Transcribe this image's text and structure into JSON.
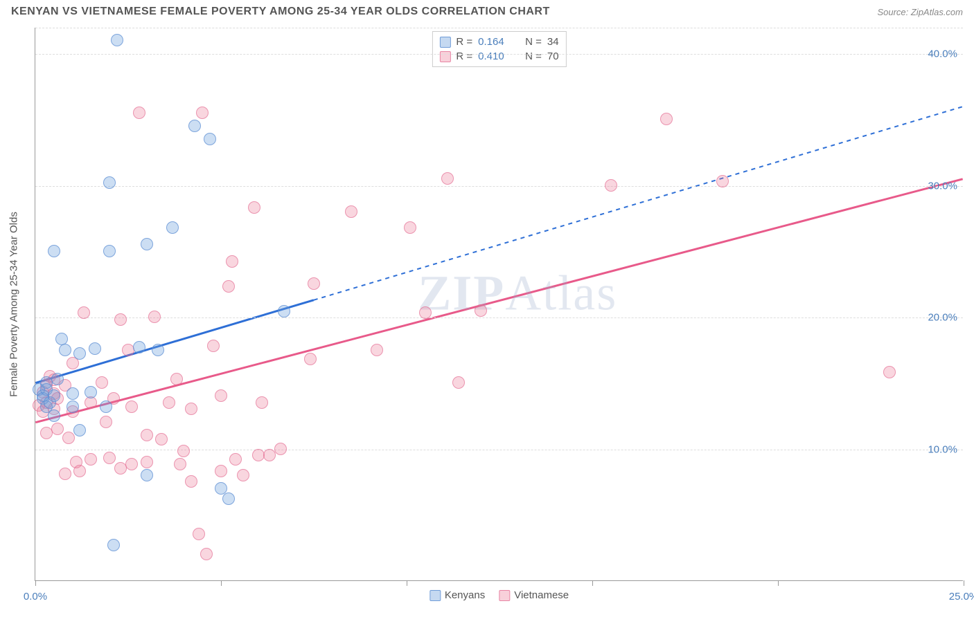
{
  "header": {
    "title": "KENYAN VS VIETNAMESE FEMALE POVERTY AMONG 25-34 YEAR OLDS CORRELATION CHART",
    "source_prefix": "Source: ",
    "source_name": "ZipAtlas.com"
  },
  "chart": {
    "type": "scatter",
    "xlim": [
      0,
      25
    ],
    "ylim": [
      0,
      42
    ],
    "x_ticks": [
      0,
      5,
      10,
      15,
      20,
      25
    ],
    "x_tick_labels": {
      "0": "0.0%",
      "25": "25.0%"
    },
    "y_ticks": [
      10,
      20,
      30,
      40
    ],
    "y_tick_labels": {
      "10": "10.0%",
      "20": "20.0%",
      "30": "30.0%",
      "40": "40.0%"
    },
    "y_gridlines": [
      10,
      20,
      30,
      40,
      42
    ],
    "y_axis_title": "Female Poverty Among 25-34 Year Olds",
    "background_color": "#ffffff",
    "grid_color": "#dddddd",
    "axis_color": "#999999",
    "tick_label_color": "#4a7ebb",
    "watermark": "ZIPAtlas",
    "series": {
      "kenyans": {
        "label": "Kenyans",
        "color_fill": "rgba(110,160,220,0.35)",
        "color_stroke": "rgba(90,140,210,0.7)",
        "trend_color": "#2e6fd6",
        "trend_solid_end_x": 7.5,
        "trend": {
          "x1": 0,
          "y1": 15,
          "x2": 25,
          "y2": 36
        },
        "r": "0.164",
        "n": "34",
        "points": [
          [
            0.1,
            14.5
          ],
          [
            0.2,
            14
          ],
          [
            0.3,
            15
          ],
          [
            0.2,
            13.8
          ],
          [
            0.3,
            13.2
          ],
          [
            0.4,
            13.5
          ],
          [
            0.3,
            14.5
          ],
          [
            0.5,
            14
          ],
          [
            0.6,
            15.3
          ],
          [
            0.5,
            12.5
          ],
          [
            0.5,
            25
          ],
          [
            0.7,
            18.3
          ],
          [
            0.8,
            17.5
          ],
          [
            1.0,
            14.2
          ],
          [
            1.0,
            13.2
          ],
          [
            1.2,
            11.4
          ],
          [
            1.2,
            17.2
          ],
          [
            1.5,
            14.3
          ],
          [
            1.6,
            17.6
          ],
          [
            1.9,
            13.2
          ],
          [
            2.0,
            25
          ],
          [
            2.0,
            30.2
          ],
          [
            2.1,
            2.7
          ],
          [
            2.2,
            41
          ],
          [
            2.8,
            17.7
          ],
          [
            3.0,
            8
          ],
          [
            3.0,
            25.5
          ],
          [
            3.3,
            17.5
          ],
          [
            3.7,
            26.8
          ],
          [
            4.3,
            34.5
          ],
          [
            4.7,
            33.5
          ],
          [
            5.0,
            7
          ],
          [
            5.2,
            6.2
          ],
          [
            6.7,
            20.4
          ]
        ]
      },
      "vietnamese": {
        "label": "Vietnamese",
        "color_fill": "rgba(235,120,150,0.3)",
        "color_stroke": "rgba(225,100,140,0.6)",
        "trend_color": "#e85a8a",
        "trend": {
          "x1": 0,
          "y1": 12,
          "x2": 25,
          "y2": 30.5
        },
        "r": "0.410",
        "n": "70",
        "points": [
          [
            0.1,
            13.3
          ],
          [
            0.2,
            14.3
          ],
          [
            0.2,
            12.8
          ],
          [
            0.3,
            14.8
          ],
          [
            0.3,
            13.5
          ],
          [
            0.3,
            11.2
          ],
          [
            0.4,
            15.5
          ],
          [
            0.5,
            14.2
          ],
          [
            0.5,
            15.2
          ],
          [
            0.5,
            13
          ],
          [
            0.6,
            13.8
          ],
          [
            0.6,
            11.5
          ],
          [
            0.8,
            14.8
          ],
          [
            0.9,
            10.8
          ],
          [
            1.0,
            12.8
          ],
          [
            1.0,
            16.5
          ],
          [
            1.1,
            9.0
          ],
          [
            1.2,
            8.3
          ],
          [
            1.3,
            20.3
          ],
          [
            1.5,
            13.5
          ],
          [
            1.5,
            9.2
          ],
          [
            1.8,
            15
          ],
          [
            1.9,
            12
          ],
          [
            2.0,
            9.3
          ],
          [
            2.1,
            13.8
          ],
          [
            2.3,
            8.5
          ],
          [
            2.3,
            19.8
          ],
          [
            2.5,
            17.5
          ],
          [
            2.6,
            13.2
          ],
          [
            2.6,
            8.8
          ],
          [
            2.8,
            35.5
          ],
          [
            3.0,
            11
          ],
          [
            3.0,
            9.0
          ],
          [
            3.2,
            20
          ],
          [
            3.4,
            10.7
          ],
          [
            3.6,
            13.5
          ],
          [
            3.8,
            15.3
          ],
          [
            3.9,
            8.8
          ],
          [
            4.0,
            9.8
          ],
          [
            4.2,
            7.5
          ],
          [
            4.2,
            13
          ],
          [
            4.4,
            3.5
          ],
          [
            4.5,
            35.5
          ],
          [
            4.6,
            2
          ],
          [
            4.8,
            17.8
          ],
          [
            5.0,
            8.3
          ],
          [
            5.0,
            14
          ],
          [
            5.2,
            22.3
          ],
          [
            5.3,
            24.2
          ],
          [
            5.4,
            9.2
          ],
          [
            5.6,
            8
          ],
          [
            5.9,
            28.3
          ],
          [
            6.0,
            9.5
          ],
          [
            6.1,
            13.5
          ],
          [
            6.3,
            9.5
          ],
          [
            6.6,
            10
          ],
          [
            7.4,
            16.8
          ],
          [
            7.5,
            22.5
          ],
          [
            8.5,
            28
          ],
          [
            9.2,
            17.5
          ],
          [
            10.1,
            26.8
          ],
          [
            10.5,
            20.3
          ],
          [
            11.1,
            30.5
          ],
          [
            11.4,
            15
          ],
          [
            12.0,
            20.5
          ],
          [
            15.5,
            30
          ],
          [
            17.0,
            35
          ],
          [
            18.5,
            30.3
          ],
          [
            23.0,
            15.8
          ],
          [
            0.8,
            8.1
          ]
        ]
      }
    },
    "legend_top": [
      {
        "series": "kenyans",
        "r_label": "R =",
        "n_label": "N ="
      },
      {
        "series": "vietnamese",
        "r_label": "R =",
        "n_label": "N ="
      }
    ],
    "legend_bottom": [
      "kenyans",
      "vietnamese"
    ]
  }
}
